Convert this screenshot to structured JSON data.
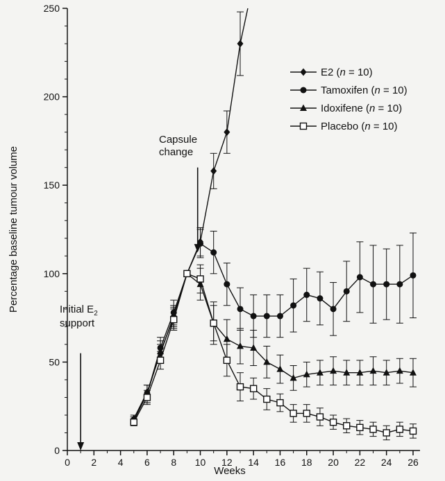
{
  "chart_data": {
    "type": "line",
    "title": "",
    "xlabel": "Weeks",
    "ylabel": "Percentage baseline tumour volume",
    "xlim": [
      0,
      26
    ],
    "ylim": [
      0,
      250
    ],
    "x_ticks": [
      "0",
      "2",
      "4",
      "6",
      "8",
      "10",
      "12",
      "14",
      "16",
      "18",
      "20",
      "22",
      "24",
      "26"
    ],
    "y_ticks": [
      "0",
      "50",
      "100",
      "150",
      "200",
      "250"
    ],
    "grid": false,
    "legend_position": "top-right",
    "legend": [
      {
        "label": "E2 (",
        "italic": "n",
        "rest": " = 10)",
        "marker": "diamond"
      },
      {
        "label": "Tamoxifen (",
        "italic": "n",
        "rest": " = 10)",
        "marker": "circle"
      },
      {
        "label": "Idoxifene (",
        "italic": "n",
        "rest": " = 10)",
        "marker": "triangle"
      },
      {
        "label": "Placebo (",
        "italic": "n",
        "rest": " = 10)",
        "marker": "square-open"
      }
    ],
    "annotations": [
      {
        "id": "capsule",
        "lines": [
          "Capsule",
          "change"
        ],
        "x": 9.8,
        "arrow_y_top": 160,
        "arrow_y_bottom": 112
      },
      {
        "id": "initial",
        "line1_main": "Initial E",
        "line1_sub": "2",
        "line2": "support",
        "x": 1,
        "arrow_y_top": 55,
        "arrow_y_bottom": 0
      }
    ],
    "series": [
      {
        "name": "E2 (n = 10)",
        "marker": "diamond",
        "x": [
          5,
          6,
          7,
          8,
          9,
          10,
          11,
          12,
          13,
          14
        ],
        "y": [
          18,
          33,
          55,
          76,
          100,
          118,
          158,
          180,
          230,
          265
        ],
        "err": [
          2,
          4,
          5,
          6,
          0,
          8,
          10,
          12,
          18,
          20
        ]
      },
      {
        "name": "Tamoxifen (n = 10)",
        "marker": "circle",
        "x": [
          5,
          6,
          7,
          8,
          9,
          10,
          11,
          12,
          13,
          14,
          15,
          16,
          17,
          18,
          19,
          20,
          21,
          22,
          23,
          24,
          25,
          26
        ],
        "y": [
          17,
          32,
          58,
          78,
          100,
          117,
          112,
          94,
          80,
          76,
          76,
          76,
          82,
          88,
          86,
          80,
          90,
          98,
          94,
          94,
          94,
          99
        ],
        "err": [
          2,
          5,
          6,
          7,
          0,
          8,
          12,
          12,
          12,
          12,
          12,
          12,
          15,
          15,
          15,
          15,
          17,
          20,
          22,
          20,
          22,
          24
        ]
      },
      {
        "name": "Idoxifene (n = 10)",
        "marker": "triangle",
        "x": [
          5,
          6,
          7,
          8,
          9,
          10,
          11,
          12,
          13,
          14,
          15,
          16,
          17,
          18,
          19,
          20,
          21,
          22,
          23,
          24,
          25,
          26
        ],
        "y": [
          17,
          32,
          56,
          75,
          100,
          94,
          72,
          63,
          59,
          58,
          50,
          46,
          41,
          43,
          44,
          45,
          44,
          44,
          45,
          44,
          45,
          44
        ],
        "err": [
          2,
          5,
          6,
          6,
          0,
          9,
          12,
          11,
          10,
          10,
          9,
          8,
          7,
          7,
          7,
          8,
          7,
          7,
          8,
          7,
          7,
          8
        ]
      },
      {
        "name": "Placebo (n = 10)",
        "marker": "square-open",
        "x": [
          5,
          6,
          7,
          8,
          9,
          10,
          11,
          12,
          13,
          14,
          15,
          16,
          17,
          18,
          19,
          20,
          21,
          22,
          23,
          24,
          25,
          26
        ],
        "y": [
          16,
          30,
          51,
          74,
          100,
          97,
          72,
          51,
          36,
          35,
          29,
          27,
          21,
          21,
          19,
          16,
          14,
          13,
          12,
          10,
          12,
          11
        ],
        "err": [
          2,
          4,
          5,
          6,
          0,
          8,
          10,
          9,
          8,
          6,
          6,
          5,
          5,
          5,
          5,
          4,
          4,
          4,
          4,
          4,
          4,
          4
        ]
      }
    ]
  }
}
